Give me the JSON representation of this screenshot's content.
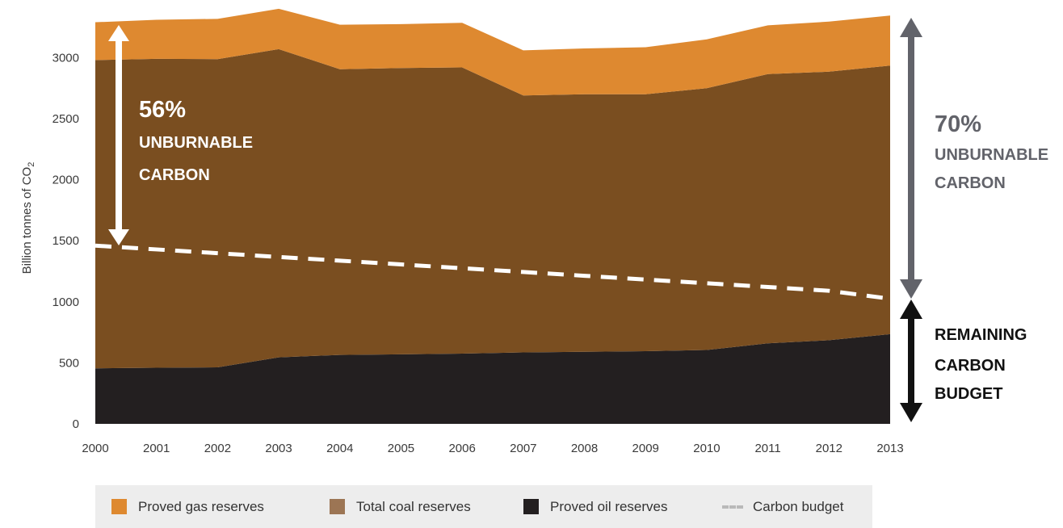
{
  "chart_data": {
    "type": "area",
    "ylabel": "Billion tonnes of CO",
    "ylabel_sub": "2",
    "x": [
      "2000",
      "2001",
      "2002",
      "2003",
      "2004",
      "2005",
      "2006",
      "2007",
      "2008",
      "2009",
      "2010",
      "2011",
      "2012",
      "2013"
    ],
    "ylim": [
      0,
      3300
    ],
    "yticks": [
      0,
      500,
      1000,
      1500,
      2000,
      2500,
      3000
    ],
    "stacking": "stacked",
    "grid": false,
    "series": [
      {
        "name": "Proved oil reserves",
        "color": "#231f20",
        "values": [
          455,
          460,
          463,
          545,
          565,
          570,
          575,
          585,
          590,
          595,
          605,
          660,
          685,
          735
        ]
      },
      {
        "name": "Total coal reserves",
        "color": "#7a4e20",
        "values": [
          2525,
          2530,
          2525,
          2525,
          2340,
          2345,
          2345,
          2105,
          2110,
          2105,
          2145,
          2205,
          2200,
          2200
        ]
      },
      {
        "name": "Proved gas reserves",
        "color": "#de8930",
        "values": [
          310,
          320,
          330,
          330,
          365,
          360,
          365,
          370,
          375,
          385,
          400,
          400,
          410,
          410
        ]
      }
    ],
    "carbon_budget": {
      "name": "Carbon budget",
      "color": "#ffffff",
      "values": [
        1460,
        1429,
        1398,
        1367,
        1337,
        1306,
        1275,
        1244,
        1213,
        1182,
        1152,
        1121,
        1090,
        1025
      ]
    },
    "annotations": {
      "left": {
        "pct": "56%",
        "line1": "UNBURNABLE",
        "line2": "CARBON"
      },
      "right": {
        "pct": "70%",
        "line1": "UNBURNABLE",
        "line2": "CARBON"
      },
      "budget": {
        "line1": "REMAINING",
        "line2": "CARBON",
        "line3": "BUDGET"
      }
    },
    "legend": [
      {
        "label": "Proved gas reserves",
        "color": "#de8930"
      },
      {
        "label": "Total coal reserves",
        "color": "#9c7554"
      },
      {
        "label": "Proved oil reserves",
        "color": "#231f20"
      },
      {
        "label": "Carbon budget",
        "color": "#b9b9b9"
      }
    ],
    "legend_position": "bottom"
  }
}
